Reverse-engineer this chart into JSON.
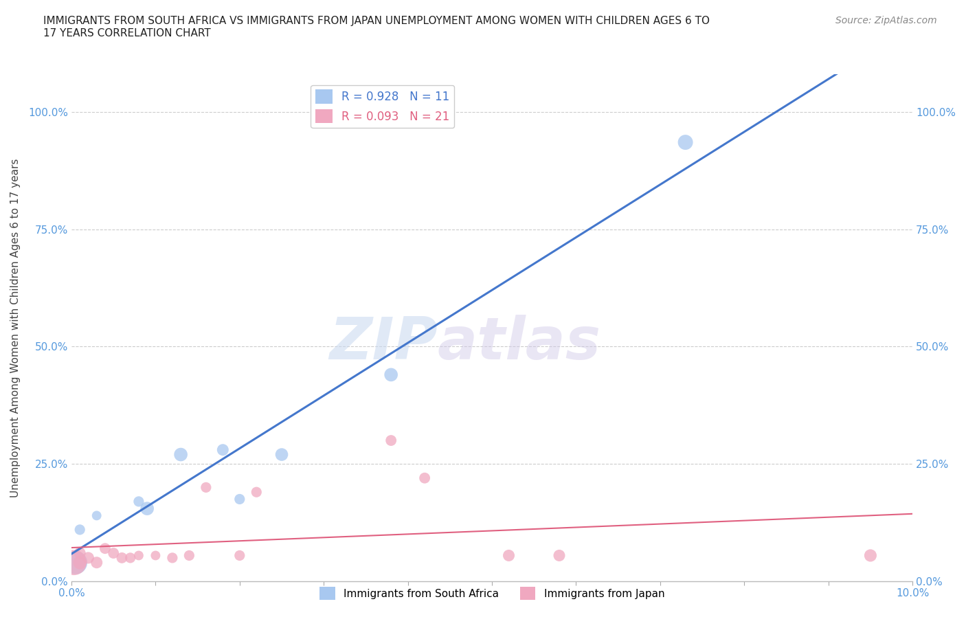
{
  "title": "IMMIGRANTS FROM SOUTH AFRICA VS IMMIGRANTS FROM JAPAN UNEMPLOYMENT AMONG WOMEN WITH CHILDREN AGES 6 TO\n17 YEARS CORRELATION CHART",
  "source": "Source: ZipAtlas.com",
  "ylabel": "Unemployment Among Women with Children Ages 6 to 17 years",
  "xlim": [
    0.0,
    0.1
  ],
  "ylim": [
    0.0,
    1.08
  ],
  "xticks": [
    0.0,
    0.01,
    0.02,
    0.03,
    0.04,
    0.05,
    0.06,
    0.07,
    0.08,
    0.09,
    0.1
  ],
  "yticks": [
    0.0,
    0.25,
    0.5,
    0.75,
    1.0
  ],
  "ytick_labels": [
    "0.0%",
    "25.0%",
    "50.0%",
    "75.0%",
    "100.0%"
  ],
  "xtick_labels": [
    "0.0%",
    "",
    "",
    "",
    "",
    "",
    "",
    "",
    "",
    "",
    "10.0%"
  ],
  "south_africa_x": [
    0.0005,
    0.001,
    0.003,
    0.008,
    0.009,
    0.013,
    0.018,
    0.02,
    0.025,
    0.038,
    0.073
  ],
  "south_africa_y": [
    0.04,
    0.11,
    0.14,
    0.17,
    0.155,
    0.27,
    0.28,
    0.175,
    0.27,
    0.44,
    0.935
  ],
  "south_africa_sizes": [
    600,
    120,
    100,
    120,
    200,
    200,
    150,
    120,
    180,
    200,
    250
  ],
  "japan_x": [
    0.0003,
    0.001,
    0.001,
    0.002,
    0.003,
    0.004,
    0.005,
    0.006,
    0.007,
    0.008,
    0.01,
    0.012,
    0.014,
    0.016,
    0.02,
    0.022,
    0.038,
    0.042,
    0.052,
    0.058,
    0.095
  ],
  "japan_y": [
    0.04,
    0.04,
    0.06,
    0.05,
    0.04,
    0.07,
    0.06,
    0.05,
    0.05,
    0.055,
    0.055,
    0.05,
    0.055,
    0.2,
    0.055,
    0.19,
    0.3,
    0.22,
    0.055,
    0.055,
    0.055
  ],
  "japan_sizes": [
    700,
    200,
    150,
    150,
    150,
    130,
    130,
    130,
    120,
    100,
    100,
    120,
    120,
    120,
    120,
    120,
    130,
    130,
    150,
    150,
    170
  ],
  "sa_R": 0.928,
  "sa_N": 11,
  "jp_R": 0.093,
  "jp_N": 21,
  "sa_color": "#a8c8f0",
  "jp_color": "#f0a8c0",
  "sa_line_color": "#4477cc",
  "jp_line_color": "#e06080",
  "watermark_zip": "ZIP",
  "watermark_atlas": "atlas",
  "background_color": "#ffffff",
  "grid_color": "#cccccc"
}
